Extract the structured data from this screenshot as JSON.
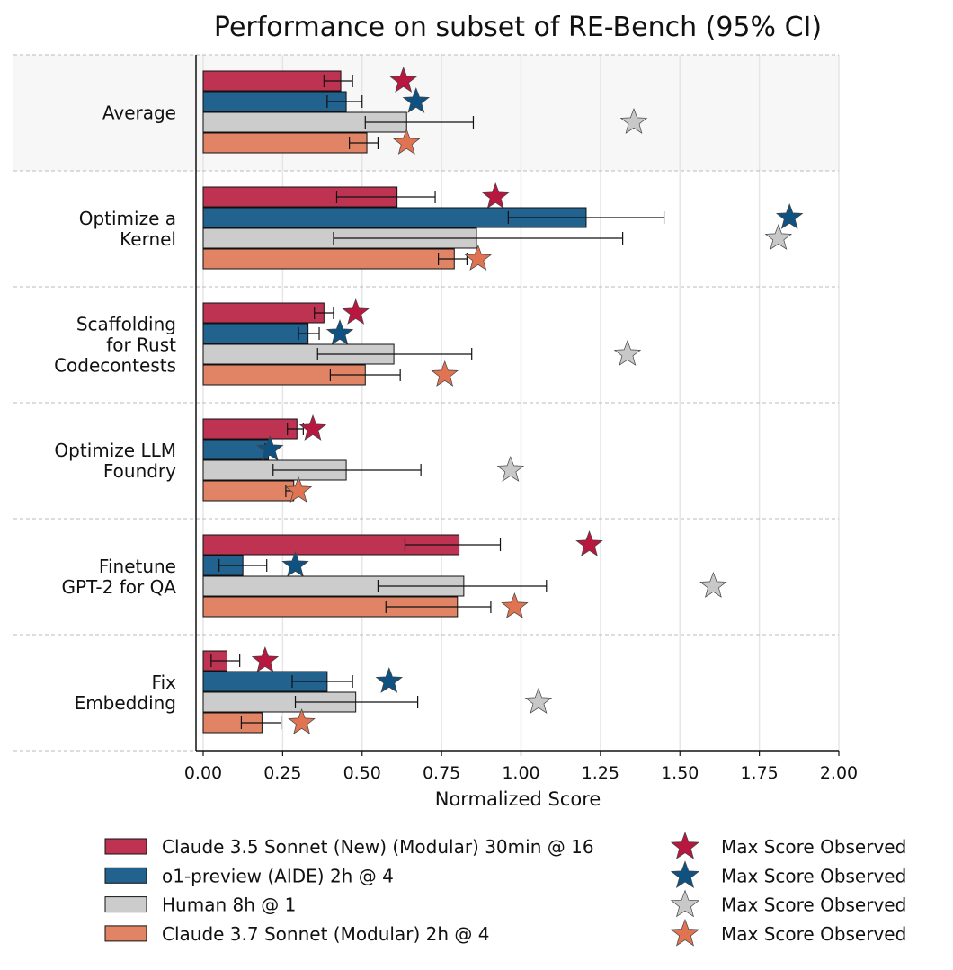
{
  "chart_data": {
    "type": "bar",
    "orientation": "horizontal",
    "title": "Performance on subset of RE-Bench (95% CI)",
    "xlabel": "Normalized Score",
    "ylabel": "",
    "xlim": [
      0,
      2.0
    ],
    "xticks": [
      "0.00",
      "0.25",
      "0.50",
      "0.75",
      "1.00",
      "1.25",
      "1.50",
      "1.75",
      "2.00"
    ],
    "grid": "vertical",
    "legend_placement": "bottom",
    "categories": [
      [
        "Average"
      ],
      [
        "Optimize a",
        "Kernel"
      ],
      [
        "Scaffolding",
        "for Rust",
        "Codecontests"
      ],
      [
        "Optimize LLM",
        "Foundry"
      ],
      [
        "Finetune",
        "GPT-2 for QA"
      ],
      [
        "Fix",
        "Embedding"
      ]
    ],
    "series": [
      {
        "name": "Claude 3.5 Sonnet (New) (Modular) 30min @ 16",
        "color": "#be3352",
        "star_color": "#b8173f",
        "values": [
          0.433,
          0.61,
          0.38,
          0.295,
          0.805,
          0.075
        ],
        "ci_low": [
          0.38,
          0.42,
          0.35,
          0.265,
          0.635,
          0.025
        ],
        "ci_high": [
          0.47,
          0.73,
          0.41,
          0.315,
          0.935,
          0.115
        ],
        "max_observed": [
          0.63,
          0.92,
          0.48,
          0.345,
          1.215,
          0.195
        ]
      },
      {
        "name": "o1-preview (AIDE) 2h @ 4",
        "color": "#21628f",
        "star_color": "#0f5180",
        "values": [
          0.45,
          1.205,
          0.33,
          0.205,
          0.125,
          0.39
        ],
        "ci_low": [
          0.39,
          0.96,
          0.3,
          0.195,
          0.05,
          0.28
        ],
        "ci_high": [
          0.5,
          1.45,
          0.365,
          0.21,
          0.2,
          0.47
        ],
        "max_observed": [
          0.67,
          1.845,
          0.43,
          0.21,
          0.29,
          0.585
        ]
      },
      {
        "name": "Human 8h @ 1",
        "color": "#cccccc",
        "star_color": "#c8c8c8",
        "values": [
          0.64,
          0.86,
          0.6,
          0.45,
          0.82,
          0.48
        ],
        "ci_low": [
          0.51,
          0.41,
          0.36,
          0.22,
          0.55,
          0.29
        ],
        "ci_high": [
          0.85,
          1.32,
          0.845,
          0.685,
          1.08,
          0.675
        ],
        "max_observed": [
          1.355,
          1.81,
          1.335,
          0.967,
          1.605,
          1.055
        ]
      },
      {
        "name": "Claude 3.7 Sonnet (Modular) 2h @ 4",
        "color": "#e08465",
        "star_color": "#e07352",
        "values": [
          0.515,
          0.79,
          0.51,
          0.285,
          0.8,
          0.185
        ],
        "ci_low": [
          0.46,
          0.74,
          0.4,
          0.26,
          0.575,
          0.12
        ],
        "ci_high": [
          0.55,
          0.83,
          0.62,
          0.295,
          0.905,
          0.245
        ],
        "max_observed": [
          0.64,
          0.865,
          0.76,
          0.3,
          0.98,
          0.31
        ]
      }
    ],
    "star_legend_label": "Max Score Observed"
  }
}
